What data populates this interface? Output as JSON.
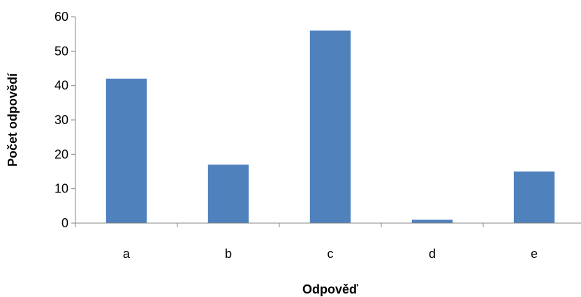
{
  "chart_data": {
    "type": "bar",
    "categories": [
      "a",
      "b",
      "c",
      "d",
      "e"
    ],
    "values": [
      42,
      17,
      56,
      1,
      15
    ],
    "xlabel": "Odpověď",
    "ylabel": "Počet odpovědí",
    "ylim": [
      0,
      60
    ],
    "yticks": [
      "0",
      "10",
      "20",
      "30",
      "40",
      "50",
      "60"
    ],
    "grid": false,
    "legend": "none",
    "bar_color": "#4F81BD"
  }
}
